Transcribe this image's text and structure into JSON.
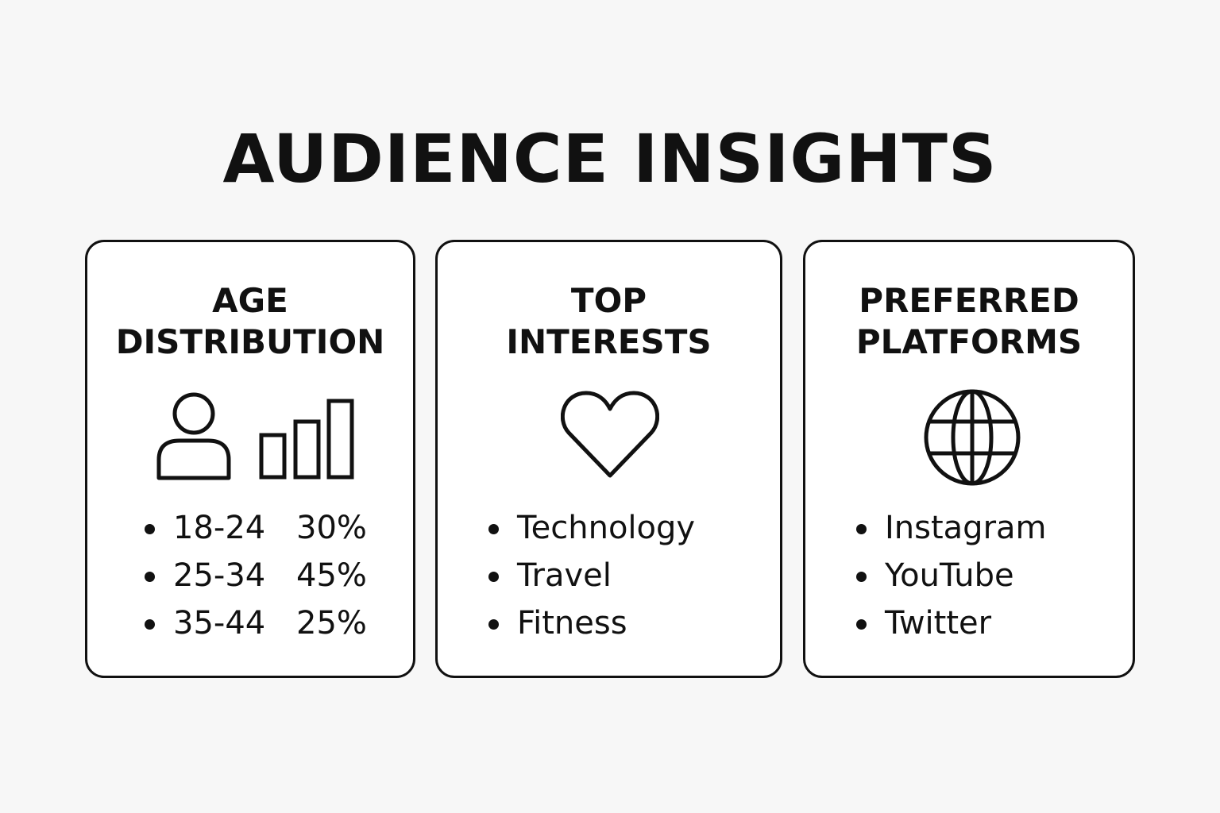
{
  "title": "AUDIENCE INSIGHTS",
  "cards": [
    {
      "title_lines": [
        "AGE",
        "DISTRIBUTION"
      ],
      "icons": [
        "user-icon",
        "bar-chart-icon"
      ],
      "items": [
        {
          "range": "18-24",
          "percent": "30%"
        },
        {
          "range": "25-34",
          "percent": "45%"
        },
        {
          "range": "35-44",
          "percent": "25%"
        }
      ]
    },
    {
      "title_lines": [
        "TOP",
        "INTERESTS"
      ],
      "icons": [
        "heart-icon"
      ],
      "items": [
        "Technology",
        "Travel",
        "Fitness"
      ]
    },
    {
      "title_lines": [
        "PREFERRED",
        "PLATFORMS"
      ],
      "icons": [
        "globe-icon"
      ],
      "items": [
        "Instagram",
        "YouTube",
        "Twitter"
      ]
    }
  ]
}
